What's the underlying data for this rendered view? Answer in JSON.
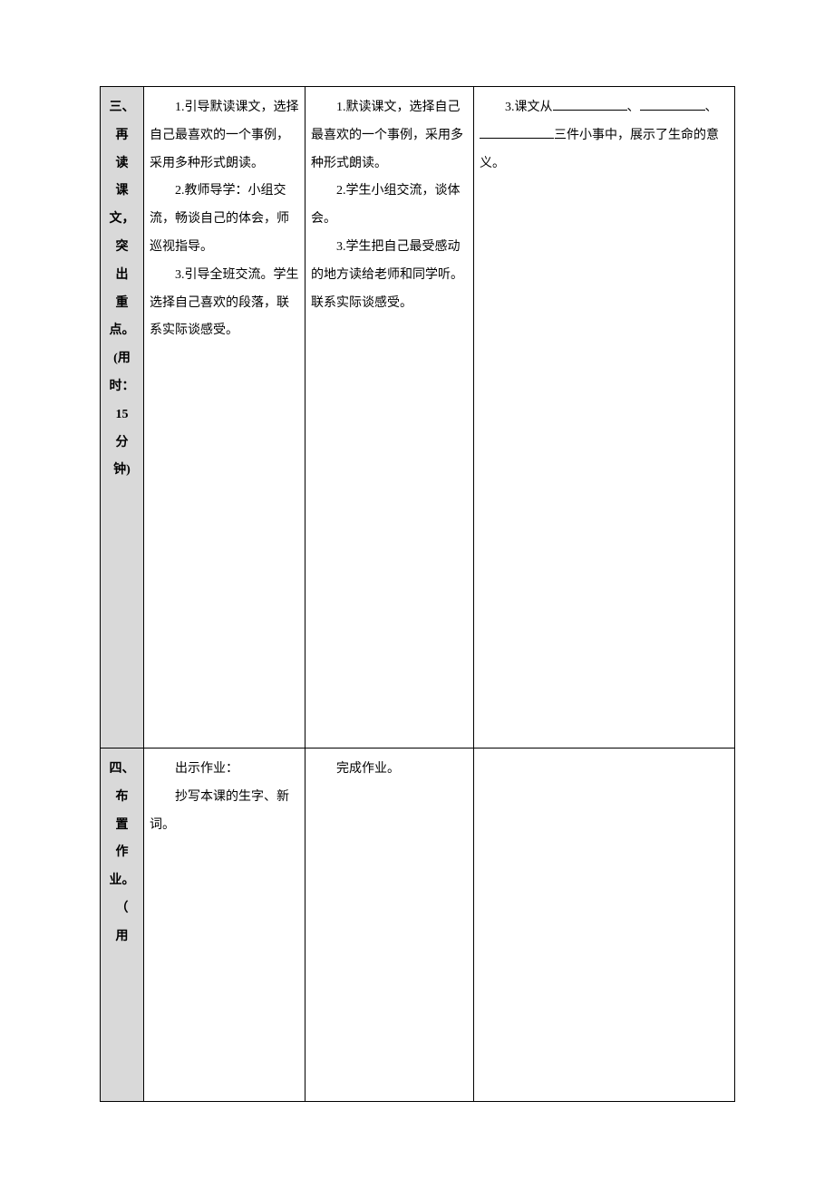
{
  "table": {
    "background_color": "#ffffff",
    "header_bg": "#d9d9d9",
    "border_color": "#000000",
    "text_color": "#000000",
    "font_family": "SimSun",
    "base_fontsize": 14,
    "header_fontsize": 15,
    "columns": {
      "section_width": 48,
      "teacher_width": 178,
      "student_width": 186,
      "exercise_width": 288
    },
    "rows": [
      {
        "section_chars": [
          "三、",
          "再",
          "读",
          "课",
          "文，",
          "突",
          "出",
          "重",
          "点。",
          "(用",
          "时：",
          "15",
          "分",
          "钟)"
        ],
        "teacher": {
          "p1": "1.引导默读课文，选择自己最喜欢的一个事例，采用多种形式朗读。",
          "p2": "2.教师导学：小组交流，畅谈自己的体会，师巡视指导。",
          "p3": "3.引导全班交流。学生选择自己喜欢的段落，联系实际谈感受。"
        },
        "student": {
          "p1": "1.默读课文，选择自己最喜欢的一个事例，采用多种形式朗读。",
          "p2": "2.学生小组交流，谈体会。",
          "p3": "3.学生把自己最受感动的地方读给老师和同学听。联系实际谈感受。"
        },
        "exercise": {
          "prefix": "3.课文从",
          "sep1": "、",
          "sep2": "、",
          "suffix": "三件小事中，展示了生命的意义。"
        }
      },
      {
        "section_chars": [
          "四、",
          "布",
          "置",
          "作",
          "业。",
          "（",
          "用"
        ],
        "teacher": {
          "p1": "出示作业：",
          "p2": "抄写本课的生字、新词。"
        },
        "student": {
          "p1": "完成作业。"
        },
        "exercise": {}
      }
    ]
  }
}
